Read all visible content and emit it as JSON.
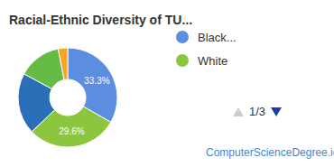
{
  "chart_data": {
    "type": "donut",
    "title": "Racial-Ethnic Diversity of TU...",
    "categories": [
      "Black...",
      "White",
      null,
      null,
      null
    ],
    "values": [
      33.3,
      29.6,
      20.0,
      14.0,
      3.1
    ],
    "value_labels": [
      "33.3%",
      "29.6%",
      null,
      null,
      null
    ],
    "data_labels": true,
    "colors": [
      "#5b8ee0",
      "#8cc63f",
      "#2a6fb8",
      "#66bb44",
      "#f5a623"
    ],
    "legend": "right",
    "legend_page": "1/3",
    "source": "ComputerScienceDegree.io"
  }
}
